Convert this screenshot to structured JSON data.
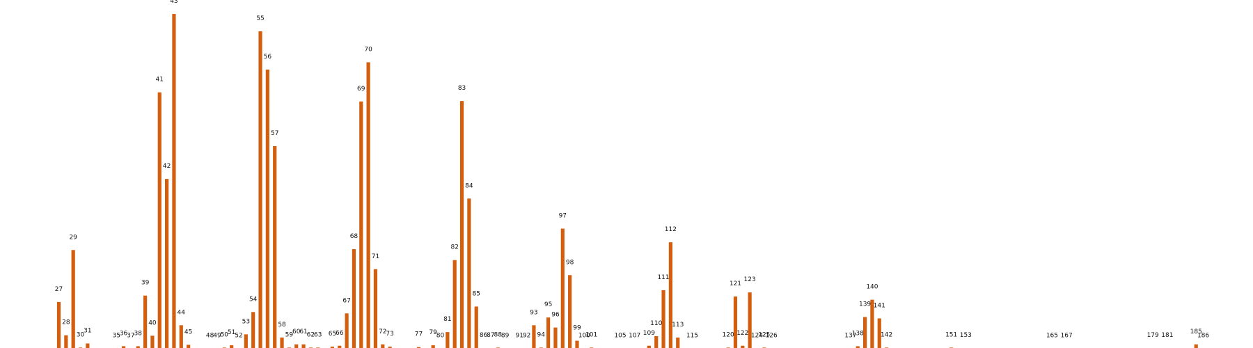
{
  "chart_data": {
    "type": "bar",
    "title": "",
    "xlabel": "",
    "ylabel": "",
    "ylim": [
      0,
      73
    ],
    "grid": false,
    "legend": "none",
    "bar_color": "#d35f0e",
    "bars": [
      {
        "x": 27,
        "value": 10.4
      },
      {
        "x": 28,
        "value": 3.1
      },
      {
        "x": 29,
        "value": 21.8
      },
      {
        "x": 30,
        "value": 0.4
      },
      {
        "x": 31,
        "value": 1.3
      },
      {
        "x": 35,
        "value": 0.2
      },
      {
        "x": 36,
        "value": 0.7
      },
      {
        "x": 37,
        "value": 0.2
      },
      {
        "x": 38,
        "value": 0.7
      },
      {
        "x": 39,
        "value": 11.8
      },
      {
        "x": 40,
        "value": 3.0
      },
      {
        "x": 41,
        "value": 56.4
      },
      {
        "x": 42,
        "value": 37.4
      },
      {
        "x": 43,
        "value": 73.6
      },
      {
        "x": 44,
        "value": 5.3
      },
      {
        "x": 45,
        "value": 1.0
      },
      {
        "x": 48,
        "value": 0.2
      },
      {
        "x": 49,
        "value": 0.2
      },
      {
        "x": 50,
        "value": 0.4
      },
      {
        "x": 51,
        "value": 0.9
      },
      {
        "x": 52,
        "value": 0.2
      },
      {
        "x": 53,
        "value": 3.3
      },
      {
        "x": 54,
        "value": 8.2
      },
      {
        "x": 55,
        "value": 69.8
      },
      {
        "x": 56,
        "value": 61.4
      },
      {
        "x": 57,
        "value": 44.6
      },
      {
        "x": 58,
        "value": 2.6
      },
      {
        "x": 59,
        "value": 0.4
      },
      {
        "x": 60,
        "value": 1.1
      },
      {
        "x": 61,
        "value": 1.1
      },
      {
        "x": 62,
        "value": 0.4
      },
      {
        "x": 63,
        "value": 0.4
      },
      {
        "x": 65,
        "value": 0.6
      },
      {
        "x": 66,
        "value": 0.8
      },
      {
        "x": 67,
        "value": 7.9
      },
      {
        "x": 68,
        "value": 22.0
      },
      {
        "x": 69,
        "value": 54.4
      },
      {
        "x": 70,
        "value": 63.0
      },
      {
        "x": 71,
        "value": 17.6
      },
      {
        "x": 72,
        "value": 1.1
      },
      {
        "x": 73,
        "value": 0.6
      },
      {
        "x": 77,
        "value": 0.5
      },
      {
        "x": 79,
        "value": 0.9
      },
      {
        "x": 80,
        "value": 0.2
      },
      {
        "x": 81,
        "value": 3.8
      },
      {
        "x": 82,
        "value": 19.6
      },
      {
        "x": 83,
        "value": 54.5
      },
      {
        "x": 84,
        "value": 33.1
      },
      {
        "x": 85,
        "value": 9.4
      },
      {
        "x": 86,
        "value": 0.3
      },
      {
        "x": 87,
        "value": 0.3
      },
      {
        "x": 88,
        "value": 0.4
      },
      {
        "x": 89,
        "value": 0.2
      },
      {
        "x": 91,
        "value": 0.2
      },
      {
        "x": 92,
        "value": 0.2
      },
      {
        "x": 93,
        "value": 5.3
      },
      {
        "x": 94,
        "value": 0.4
      },
      {
        "x": 95,
        "value": 7.0
      },
      {
        "x": 96,
        "value": 4.8
      },
      {
        "x": 97,
        "value": 26.5
      },
      {
        "x": 98,
        "value": 16.3
      },
      {
        "x": 99,
        "value": 1.9
      },
      {
        "x": 100,
        "value": 0.2
      },
      {
        "x": 101,
        "value": 0.4
      },
      {
        "x": 105,
        "value": 0.2
      },
      {
        "x": 107,
        "value": 0.2
      },
      {
        "x": 109,
        "value": 0.8
      },
      {
        "x": 110,
        "value": 2.9
      },
      {
        "x": 111,
        "value": 13.0
      },
      {
        "x": 112,
        "value": 23.5
      },
      {
        "x": 113,
        "value": 2.6
      },
      {
        "x": 115,
        "value": 0.2
      },
      {
        "x": 120,
        "value": 0.4
      },
      {
        "x": 121,
        "value": 11.6
      },
      {
        "x": 122,
        "value": 0.8
      },
      {
        "x": 123,
        "value": 12.5
      },
      {
        "x": 124,
        "value": 0.2
      },
      {
        "x": 125,
        "value": 0.4
      },
      {
        "x": 126,
        "value": 0.2
      },
      {
        "x": 137,
        "value": 0.2
      },
      {
        "x": 138,
        "value": 0.7
      },
      {
        "x": 139,
        "value": 7.1
      },
      {
        "x": 140,
        "value": 10.9
      },
      {
        "x": 141,
        "value": 6.8
      },
      {
        "x": 142,
        "value": 0.4
      },
      {
        "x": 151,
        "value": 0.4
      },
      {
        "x": 153,
        "value": 0.3
      },
      {
        "x": 165,
        "value": 0.2
      },
      {
        "x": 167,
        "value": 0.2
      },
      {
        "x": 179,
        "value": 0.3
      },
      {
        "x": 181,
        "value": 0.3
      },
      {
        "x": 185,
        "value": 1.1
      },
      {
        "x": 186,
        "value": 0.2
      }
    ]
  }
}
